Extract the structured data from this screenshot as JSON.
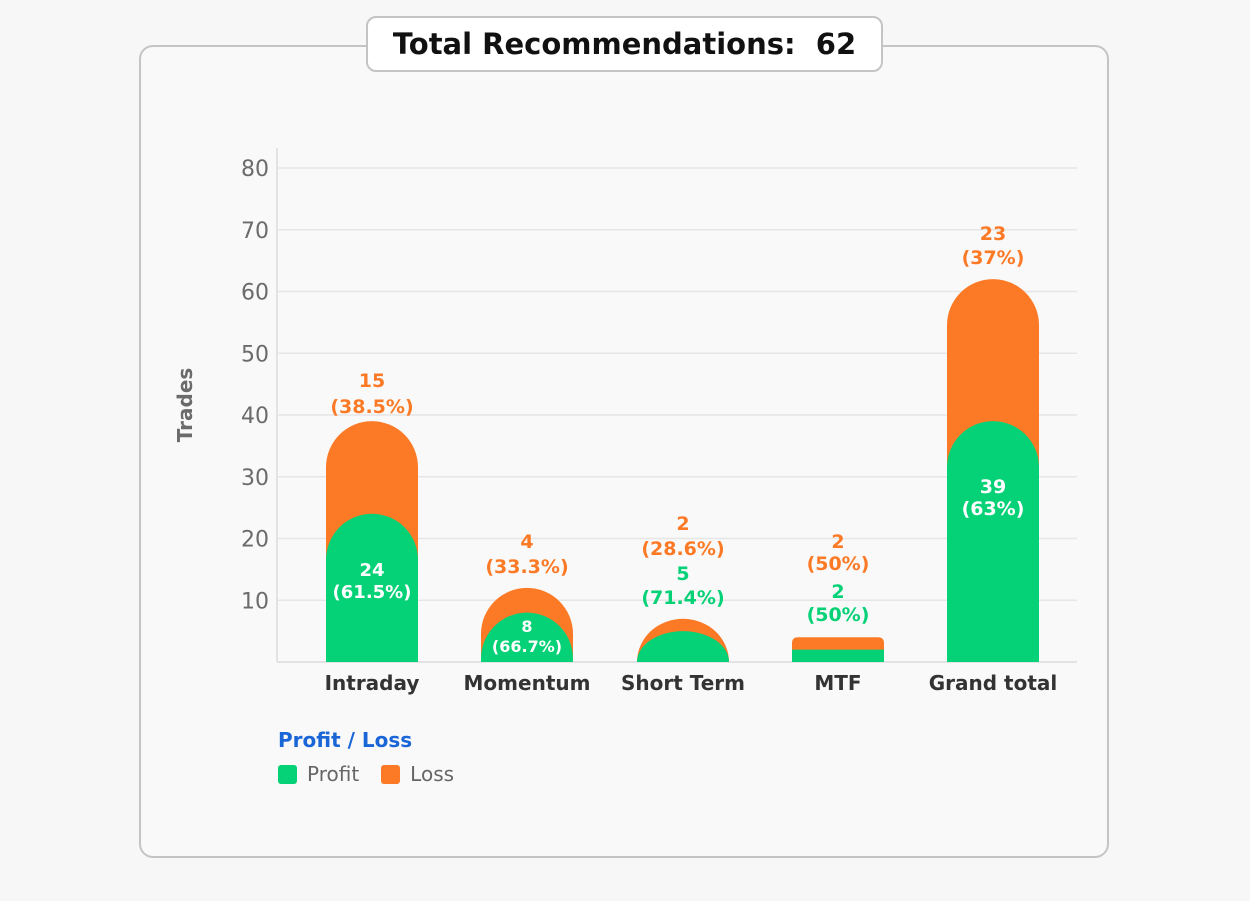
{
  "header": {
    "title": "Total Recommendations:",
    "total": "62"
  },
  "legend": {
    "title": "Profit / Loss",
    "items": [
      {
        "label": "Profit",
        "color": "#05d176"
      },
      {
        "label": "Loss",
        "color": "#fc7a26"
      }
    ]
  },
  "chart_data": {
    "type": "bar",
    "stacked": true,
    "ylabel": "Trades",
    "xlabel": "",
    "ylim": [
      0,
      80
    ],
    "yticks": [
      "10",
      "20",
      "30",
      "40",
      "50",
      "60",
      "70",
      "80"
    ],
    "grid": true,
    "legend_position": "bottom-left",
    "categories": [
      "Intraday",
      "Momentum",
      "Short Term",
      "MTF",
      "Grand total"
    ],
    "series": [
      {
        "name": "Profit",
        "color": "#05d176",
        "values": [
          24,
          8,
          5,
          2,
          39
        ],
        "labels": [
          "24",
          "8",
          "5",
          "2",
          "39"
        ],
        "pct_labels": [
          "(61.5%)",
          "(66.7%)",
          "(71.4%)",
          "(50%)",
          "(63%)"
        ]
      },
      {
        "name": "Loss",
        "color": "#fc7a26",
        "values": [
          15,
          4,
          2,
          2,
          23
        ],
        "labels": [
          "15",
          "4",
          "2",
          "2",
          "23"
        ],
        "pct_labels": [
          "(38.5%)",
          "(33.3%)",
          "(28.6%)",
          "(50%)",
          "(37%)"
        ]
      }
    ]
  }
}
